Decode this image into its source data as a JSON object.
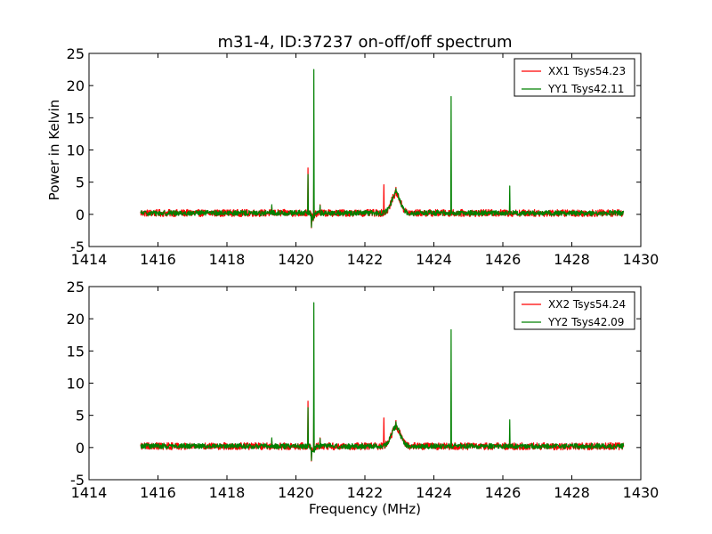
{
  "title": "m31-4, ID:37237 on-off/off spectrum",
  "chart_data": [
    {
      "type": "line",
      "xlabel": "",
      "ylabel": "Power in Kelvin",
      "xlim": [
        1414,
        1430
      ],
      "ylim": [
        -5,
        25
      ],
      "x_ticks": [
        1414,
        1416,
        1418,
        1420,
        1422,
        1424,
        1426,
        1428,
        1430
      ],
      "y_ticks": [
        -5,
        0,
        5,
        10,
        15,
        20,
        25
      ],
      "legend_position": "top-right",
      "series": [
        {
          "name": "XX1 Tsys54.23",
          "color": "#ff0000",
          "x_range": [
            1415.5,
            1429.5
          ],
          "noise": 0.55,
          "baseline": 0.2,
          "features": [
            {
              "x": 1419.3,
              "value": 1.2
            },
            {
              "x": 1420.35,
              "value": 7.2
            },
            {
              "x": 1420.45,
              "value": -2.1
            },
            {
              "x": 1420.52,
              "value": 6.3
            },
            {
              "x": 1420.7,
              "value": 1.5
            },
            {
              "x": 1422.55,
              "value": 4.6
            },
            {
              "x": 1422.9,
              "value": 4.2
            },
            {
              "x": 1424.5,
              "value": 1.0
            },
            {
              "x": 1426.2,
              "value": 1.0
            }
          ]
        },
        {
          "name": "YY1 Tsys42.11",
          "color": "#008000",
          "x_range": [
            1415.5,
            1429.5
          ],
          "noise": 0.4,
          "baseline": 0.2,
          "features": [
            {
              "x": 1419.3,
              "value": 1.5
            },
            {
              "x": 1420.35,
              "value": 6.2
            },
            {
              "x": 1420.45,
              "value": -2.0
            },
            {
              "x": 1420.52,
              "value": 22.5
            },
            {
              "x": 1420.7,
              "value": 1.4
            },
            {
              "x": 1422.9,
              "value": 4.0
            },
            {
              "x": 1424.5,
              "value": 18.3
            },
            {
              "x": 1426.2,
              "value": 4.4
            }
          ]
        }
      ]
    },
    {
      "type": "line",
      "xlabel": "Frequency (MHz)",
      "ylabel": "",
      "xlim": [
        1414,
        1430
      ],
      "ylim": [
        -5,
        25
      ],
      "x_ticks": [
        1414,
        1416,
        1418,
        1420,
        1422,
        1424,
        1426,
        1428,
        1430
      ],
      "y_ticks": [
        -5,
        0,
        5,
        10,
        15,
        20,
        25
      ],
      "legend_position": "top-right",
      "series": [
        {
          "name": "XX2 Tsys54.24",
          "color": "#ff0000",
          "x_range": [
            1415.5,
            1429.5
          ],
          "noise": 0.55,
          "baseline": 0.2,
          "features": [
            {
              "x": 1419.3,
              "value": 1.2
            },
            {
              "x": 1420.35,
              "value": 7.2
            },
            {
              "x": 1420.45,
              "value": -2.1
            },
            {
              "x": 1420.52,
              "value": 6.3
            },
            {
              "x": 1420.7,
              "value": 1.5
            },
            {
              "x": 1422.55,
              "value": 4.6
            },
            {
              "x": 1422.9,
              "value": 4.2
            },
            {
              "x": 1424.5,
              "value": 1.0
            },
            {
              "x": 1426.2,
              "value": 1.0
            }
          ]
        },
        {
          "name": "YY2 Tsys42.09",
          "color": "#008000",
          "x_range": [
            1415.5,
            1429.5
          ],
          "noise": 0.4,
          "baseline": 0.2,
          "features": [
            {
              "x": 1419.3,
              "value": 1.5
            },
            {
              "x": 1420.35,
              "value": 6.2
            },
            {
              "x": 1420.45,
              "value": -2.0
            },
            {
              "x": 1420.52,
              "value": 22.5
            },
            {
              "x": 1420.7,
              "value": 1.4
            },
            {
              "x": 1422.9,
              "value": 4.0
            },
            {
              "x": 1424.5,
              "value": 18.3
            },
            {
              "x": 1426.2,
              "value": 4.3
            }
          ]
        }
      ]
    }
  ]
}
